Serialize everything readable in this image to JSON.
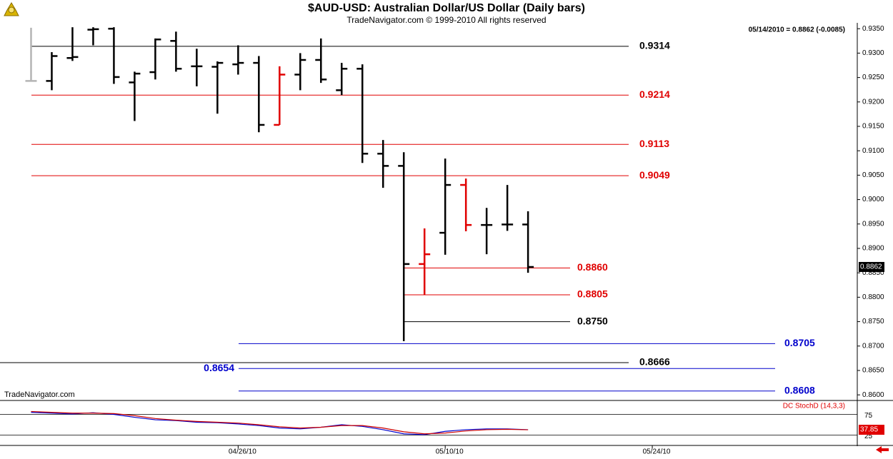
{
  "chart_data": [
    {
      "type": "ohlc",
      "title": "$AUD-USD:  Australian Dollar/US Dollar  (Daily bars)",
      "subtitle": "TradeNavigator.com © 1999-2010 All rights reserved",
      "quote": "05/14/2010 = 0.8862 (-0.0085)",
      "source": "TradeNavigator.com",
      "series": [
        {
          "open": [
            0.9243,
            0.9243,
            0.929,
            0.9348,
            0.935,
            0.924,
            0.9261,
            0.9325,
            0.9273,
            0.9272,
            0.9277,
            0.928,
            0.9153,
            0.9256,
            0.9286,
            0.9224,
            0.9268,
            0.9094,
            0.9069,
            0.8868,
            0.8932,
            0.903,
            0.8948,
            0.8949,
            0.8949
          ],
          "high": [
            0.9352,
            0.9302,
            0.9353,
            0.9353,
            0.9353,
            0.9262,
            0.933,
            0.9344,
            0.9309,
            0.9283,
            0.9316,
            0.9294,
            0.9273,
            0.93,
            0.933,
            0.928,
            0.9277,
            0.9122,
            0.9097,
            0.8941,
            0.9084,
            0.9043,
            0.8983,
            0.903,
            0.8976
          ],
          "low": [
            0.9243,
            0.9224,
            0.9284,
            0.9316,
            0.9237,
            0.9161,
            0.9246,
            0.9262,
            0.9232,
            0.9176,
            0.9256,
            0.9138,
            0.9153,
            0.9224,
            0.9239,
            0.9214,
            0.9075,
            0.9024,
            0.871,
            0.8805,
            0.8887,
            0.8935,
            0.8888,
            0.8936,
            0.885
          ],
          "close": [
            0.9243,
            0.9294,
            0.9292,
            0.9349,
            0.9251,
            0.9258,
            0.9328,
            0.9268,
            0.9273,
            0.928,
            0.928,
            0.9153,
            0.9256,
            0.9286,
            0.9246,
            0.9268,
            0.9094,
            0.9069,
            0.8868,
            0.8888,
            0.903,
            0.8948,
            0.8948,
            0.8949,
            0.8862
          ],
          "colors": [
            "#b4b4b4",
            "#000000",
            "#000000",
            "#000000",
            "#000000",
            "#000000",
            "#000000",
            "#000000",
            "#000000",
            "#000000",
            "#000000",
            "#000000",
            "#e00000",
            "#000000",
            "#000000",
            "#000000",
            "#000000",
            "#000000",
            "#000000",
            "#e00000",
            "#000000",
            "#e00000",
            "#000000",
            "#000000",
            "#000000"
          ]
        }
      ],
      "levels": [
        {
          "value": 0.9314,
          "color": "#000000"
        },
        {
          "value": 0.9214,
          "color": "#e00000"
        },
        {
          "value": 0.9113,
          "color": "#e00000"
        },
        {
          "value": 0.9049,
          "color": "#e00000"
        },
        {
          "value": 0.886,
          "label": "0.8860",
          "color": "#e00000"
        },
        {
          "value": 0.8805,
          "color": "#e00000"
        },
        {
          "value": 0.875,
          "label": "0.8750",
          "color": "#000000"
        },
        {
          "value": 0.8705,
          "color": "#0000cc"
        },
        {
          "value": 0.8666,
          "color": "#000000"
        },
        {
          "value": 0.8654,
          "color": "#0000cc"
        },
        {
          "value": 0.8608,
          "color": "#0000cc"
        }
      ],
      "ylim": [
        0.859,
        0.9362
      ],
      "yticks": [
        {
          "value": 0.935,
          "label": "0.9350"
        },
        {
          "value": 0.93,
          "label": "0.9300"
        },
        {
          "value": 0.925,
          "label": "0.9250"
        },
        {
          "value": 0.92,
          "label": "0.9200"
        },
        {
          "value": 0.915,
          "label": "0.9150"
        },
        {
          "value": 0.91,
          "label": "0.9100"
        },
        {
          "value": 0.905,
          "label": "0.9050"
        },
        {
          "value": 0.9,
          "label": "0.9000"
        },
        {
          "value": 0.895,
          "label": "0.8950"
        },
        {
          "value": 0.89,
          "label": "0.8900"
        },
        {
          "value": 0.885,
          "label": "0.8850"
        },
        {
          "value": 0.88,
          "label": "0.8800"
        },
        {
          "value": 0.875,
          "label": "0.8750"
        },
        {
          "value": 0.87,
          "label": "0.8700"
        },
        {
          "value": 0.865,
          "label": "0.8650"
        },
        {
          "value": 0.86,
          "label": "0.8600"
        }
      ],
      "xlim": [
        -1.5,
        39.9
      ],
      "xticks": [
        {
          "value": 10,
          "label": "04/26/10"
        },
        {
          "value": 20,
          "label": "05/10/10"
        },
        {
          "value": 30,
          "label": "05/24/10"
        }
      ]
    },
    {
      "type": "line",
      "title": "DC StochD (14,3,3)",
      "series": [
        {
          "color": "#0000cc",
          "values": [
            80,
            78,
            76,
            79,
            75,
            68,
            62,
            60,
            56,
            55,
            52,
            48,
            42,
            40,
            44,
            50,
            46,
            38,
            28,
            26,
            34,
            38,
            40,
            40,
            38
          ]
        },
        {
          "color": "#cc0000",
          "values": [
            82,
            80,
            78,
            78,
            77,
            72,
            65,
            61,
            58,
            56,
            54,
            50,
            45,
            42,
            44,
            48,
            48,
            42,
            33,
            28,
            30,
            35,
            38,
            39,
            37.85
          ]
        }
      ],
      "ylim": [
        0,
        100
      ],
      "yticks": [
        75,
        25
      ]
    }
  ]
}
